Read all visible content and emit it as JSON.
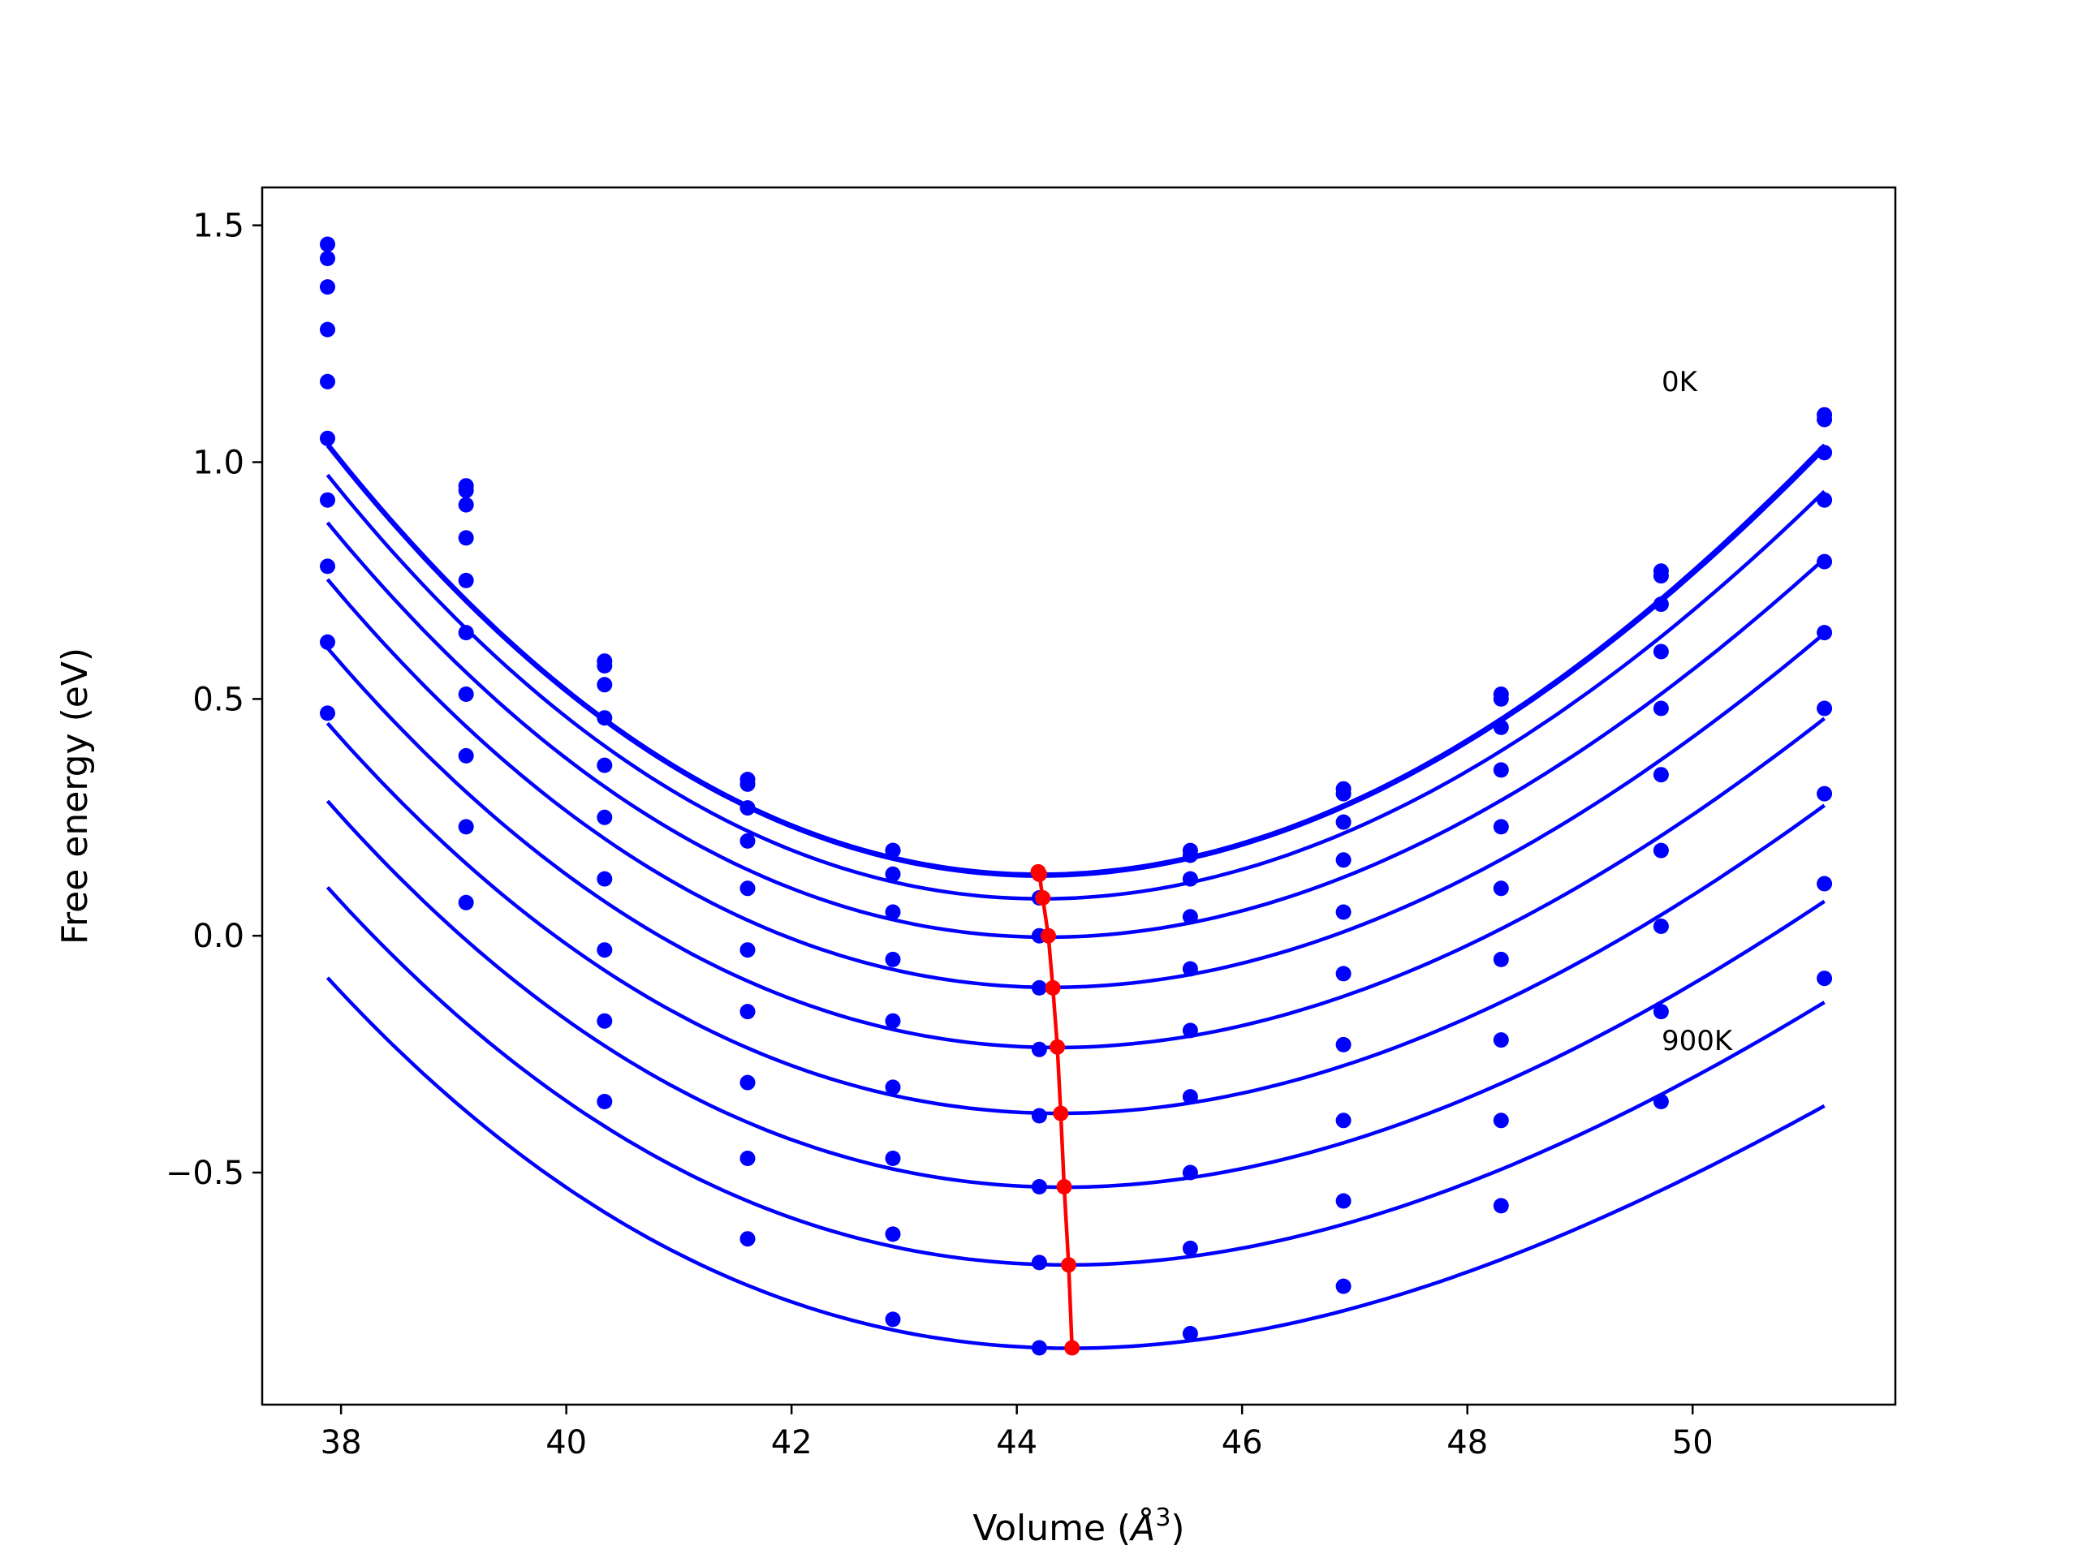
{
  "chart_data": {
    "type": "line",
    "xlabel": "Volume (Å³)",
    "xlabel_main": "Volume (",
    "xlabel_sym": "Å",
    "xlabel_sup": "3",
    "xlabel_end": ")",
    "ylabel": "Free energy (eV)",
    "xlim": [
      37.3,
      51.8
    ],
    "ylim": [
      -0.99,
      1.58
    ],
    "xticks": [
      38,
      40,
      42,
      44,
      46,
      48,
      50
    ],
    "xtick_labels": [
      "38",
      "40",
      "42",
      "44",
      "46",
      "48",
      "50"
    ],
    "yticks": [
      -0.5,
      0.0,
      0.5,
      1.0,
      1.5
    ],
    "ytick_labels": [
      "−0.5",
      "0.0",
      "0.5",
      "1.0",
      "1.5"
    ],
    "grid": false,
    "annotations": [
      {
        "text": "0K",
        "x": 49.7,
        "y": 1.16
      },
      {
        "text": "900K",
        "x": 49.7,
        "y": -0.21
      }
    ],
    "x": [
      37.88,
      39.11,
      40.34,
      41.61,
      42.9,
      44.2,
      45.54,
      46.9,
      48.3,
      49.72,
      51.17
    ],
    "curve_fit_params": [
      {
        "V0": 44.2,
        "E0": 0.13,
        "a": 0.02082,
        "b": 0.00031
      },
      {
        "V0": 44.2,
        "E0": 0.126,
        "a": 0.02076,
        "b": 0.000315
      },
      {
        "V0": 44.22,
        "E0": 0.078,
        "a": 0.02014,
        "b": 0.000335
      },
      {
        "V0": 44.27,
        "E0": -0.003,
        "a": 0.0192,
        "b": 0.00035
      },
      {
        "V0": 44.31,
        "E0": -0.109,
        "a": 0.01844,
        "b": 0.000373
      },
      {
        "V0": 44.35,
        "E0": -0.236,
        "a": 0.01761,
        "b": 0.000392
      },
      {
        "V0": 44.38,
        "E0": -0.375,
        "a": 0.01686,
        "b": 0.000406
      },
      {
        "V0": 44.41,
        "E0": -0.531,
        "a": 0.01622,
        "b": 0.000445
      },
      {
        "V0": 44.45,
        "E0": -0.695,
        "a": 0.01541,
        "b": 0.000466
      },
      {
        "V0": 44.48,
        "E0": -0.871,
        "a": 0.01472,
        "b": 0.000491
      }
    ],
    "series": [
      {
        "y": [
          1.46,
          0.95,
          0.58,
          0.33,
          0.18,
          0.13,
          0.18,
          0.31,
          0.51,
          0.77,
          1.1
        ]
      },
      {
        "y": [
          1.43,
          0.94,
          0.57,
          0.32,
          0.18,
          0.13,
          0.17,
          0.3,
          0.5,
          0.76,
          1.09
        ]
      },
      {
        "y": [
          1.37,
          0.91,
          0.53,
          0.27,
          0.13,
          0.08,
          0.12,
          0.24,
          0.44,
          0.7,
          1.02
        ]
      },
      {
        "y": [
          1.28,
          0.84,
          0.46,
          0.2,
          0.05,
          0.0,
          0.04,
          0.16,
          0.35,
          0.6,
          0.92
        ]
      },
      {
        "y": [
          1.17,
          0.75,
          0.36,
          0.1,
          -0.05,
          -0.11,
          -0.07,
          0.05,
          0.23,
          0.48,
          0.79
        ]
      },
      {
        "y": [
          1.05,
          0.64,
          0.25,
          -0.03,
          -0.18,
          -0.24,
          -0.2,
          -0.08,
          0.1,
          0.34,
          0.64
        ]
      },
      {
        "y": [
          0.92,
          0.51,
          0.12,
          -0.16,
          -0.32,
          -0.38,
          -0.34,
          -0.23,
          -0.05,
          0.18,
          0.48
        ]
      },
      {
        "y": [
          0.78,
          0.38,
          -0.03,
          -0.31,
          -0.47,
          -0.53,
          -0.5,
          -0.39,
          -0.22,
          0.02,
          0.3
        ]
      },
      {
        "y": [
          0.62,
          0.23,
          -0.18,
          -0.47,
          -0.63,
          -0.69,
          -0.66,
          -0.56,
          -0.39,
          -0.16,
          0.11
        ]
      },
      {
        "y": [
          0.47,
          0.07,
          -0.35,
          -0.64,
          -0.81,
          -0.87,
          -0.84,
          -0.74,
          -0.57,
          -0.35,
          -0.09
        ]
      }
    ],
    "minima_line": {
      "x": [
        44.19,
        44.2,
        44.23,
        44.28,
        44.32,
        44.36,
        44.39,
        44.42,
        44.46,
        44.49
      ],
      "y": [
        0.135,
        0.13,
        0.08,
        0.0,
        -0.11,
        -0.235,
        -0.375,
        -0.53,
        -0.695,
        -0.87
      ]
    },
    "colors": {
      "curves": "#0000ff",
      "minima": "#ff0000",
      "axes": "#000000"
    }
  }
}
